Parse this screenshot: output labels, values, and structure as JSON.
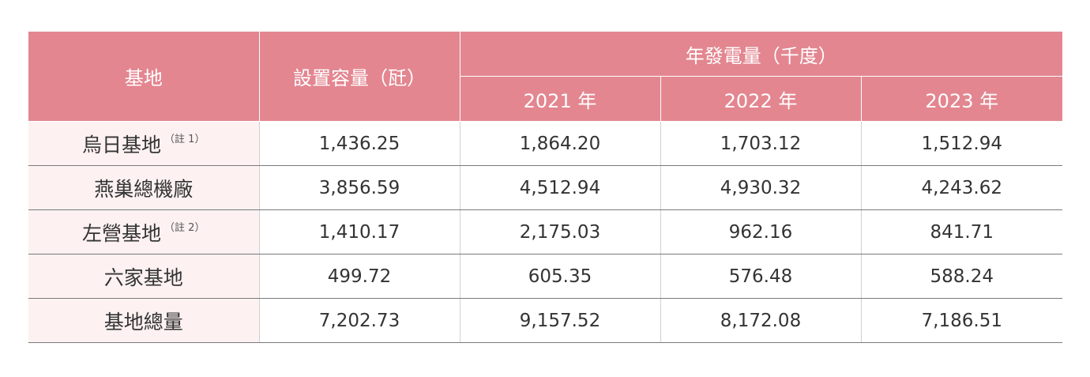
{
  "header": {
    "base": "基地",
    "capacity": "設置容量（瓩）",
    "generation": "年發電量（千度）",
    "years": [
      "2021 年",
      "2022 年",
      "2023 年"
    ]
  },
  "rows": [
    {
      "name": "烏日基地",
      "note": "（註 1）",
      "values": [
        "1,436.25",
        "1,864.20",
        "1,703.12",
        "1,512.94"
      ]
    },
    {
      "name": "燕巢總機廠",
      "values": [
        "3,856.59",
        "4,512.94",
        "4,930.32",
        "4,243.62"
      ]
    },
    {
      "name": "左營基地",
      "note": "（註 2）",
      "values": [
        "1,410.17",
        "2,175.03",
        "962.16",
        "841.71"
      ]
    },
    {
      "name": "六家基地",
      "values": [
        "499.72",
        "605.35",
        "576.48",
        "588.24"
      ]
    },
    {
      "name": "基地總量",
      "values": [
        "7,202.73",
        "9,157.52",
        "8,172.08",
        "7,186.51"
      ]
    }
  ]
}
